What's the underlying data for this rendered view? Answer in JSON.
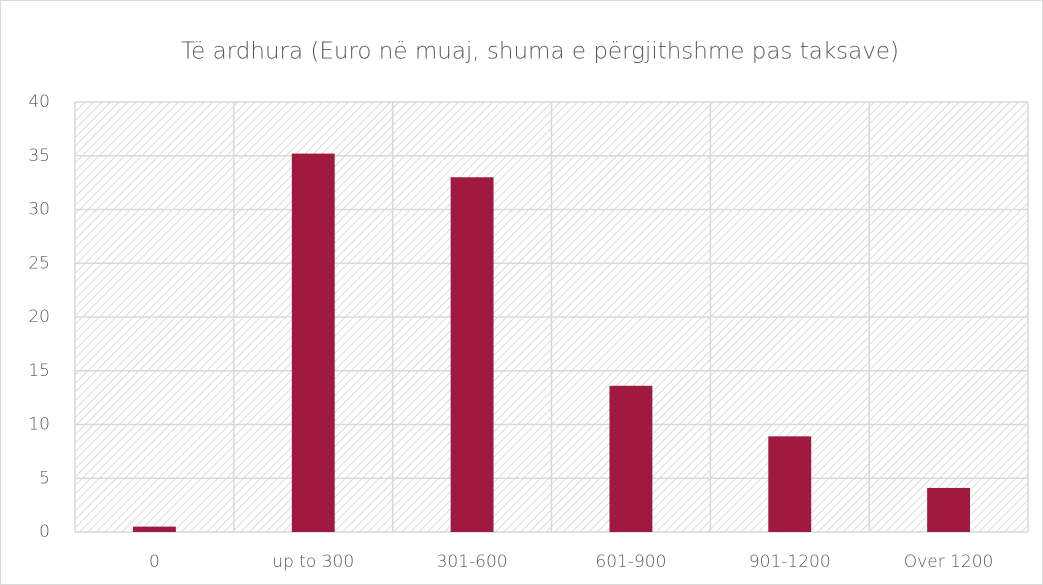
{
  "chart_data": {
    "type": "bar",
    "title": "Të ardhura (Euro në muaj, shuma e përgjithshme pas taksave)",
    "categories": [
      "0",
      "up to 300",
      "301-600",
      "601-900",
      "901-1200",
      "Over 1200"
    ],
    "values": [
      0.5,
      35.2,
      33,
      13.6,
      8.9,
      4.1
    ],
    "color": "#a0193f",
    "ylim": [
      0,
      40
    ],
    "yticks": [
      0,
      5,
      10,
      15,
      20,
      25,
      30,
      35,
      40
    ],
    "grid": true
  }
}
